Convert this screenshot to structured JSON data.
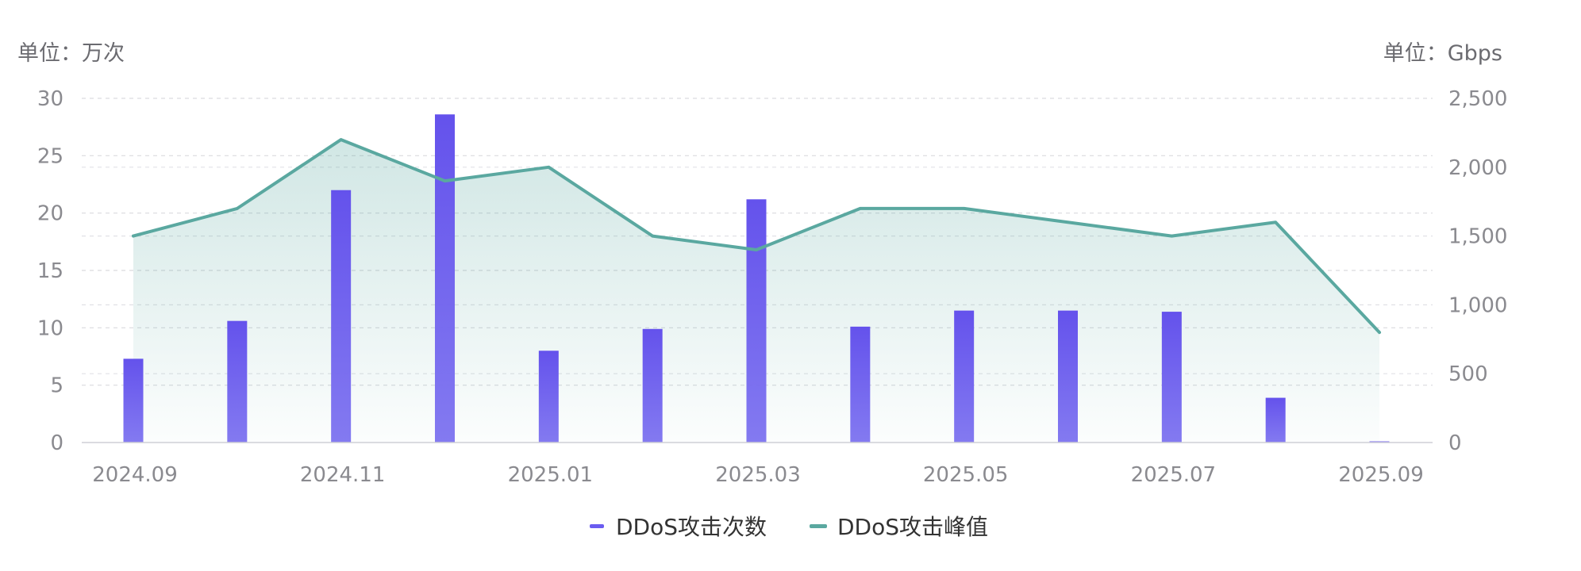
{
  "chart_data": {
    "type": "bar",
    "categories": [
      "2024.09",
      "2024.10",
      "2024.11",
      "2024.12",
      "2025.01",
      "2025.02",
      "2025.03",
      "2025.04",
      "2025.05",
      "2025.06",
      "2025.07",
      "2025.08",
      "2025.09"
    ],
    "x_tick_labels": [
      "2024.09",
      "2024.11",
      "2025.01",
      "2025.03",
      "2025.05",
      "2025.07",
      "2025.09"
    ],
    "left_unit_label": "单位：万次",
    "right_unit_label": "单位：Gbps",
    "left_ylim": [
      0,
      30
    ],
    "left_ticks": [
      "0",
      "5",
      "10",
      "15",
      "20",
      "25",
      "30"
    ],
    "right_ylim": [
      0,
      2500
    ],
    "right_ticks": [
      "0",
      "500",
      "1,000",
      "1,500",
      "2,000",
      "2,500"
    ],
    "grid": true,
    "legend_position": "bottom",
    "series": [
      {
        "name": "DDoS攻击次数",
        "type": "bar",
        "axis": "left",
        "color": "#6a5cf0",
        "values": [
          7.3,
          10.6,
          22,
          28.6,
          8,
          9.9,
          21.2,
          10.1,
          11.5,
          11.5,
          11.4,
          3.9,
          0.1
        ]
      },
      {
        "name": "DDoS攻击峰值",
        "type": "line",
        "axis": "right",
        "color": "#5aa8a0",
        "values": [
          1500,
          1700,
          2200,
          1900,
          2000,
          1500,
          1400,
          1700,
          1700,
          1600,
          1500,
          1600,
          800
        ]
      }
    ]
  }
}
